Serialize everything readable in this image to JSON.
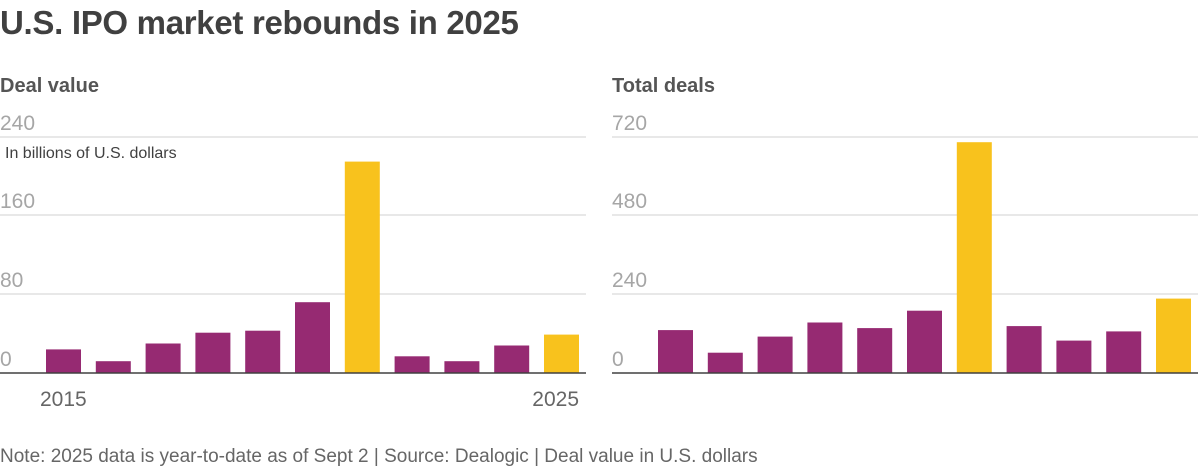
{
  "title": "U.S. IPO market rebounds in 2025",
  "note": "Note: 2025 data is year-to-date as of Sept 2 | Source: Dealogic | Deal value in U.S. dollars",
  "colors": {
    "default": "#962a72",
    "highlight": "#f8c21d"
  },
  "chart_data": [
    {
      "type": "bar",
      "title": "Deal value",
      "unit_label": "In billions of U.S. dollars",
      "categories": [
        "2015",
        "2016",
        "2017",
        "2018",
        "2019",
        "2020",
        "2021",
        "2022",
        "2023",
        "2024",
        "2025"
      ],
      "values": [
        24,
        12,
        30,
        41,
        43,
        72,
        215,
        17,
        12,
        28,
        39
      ],
      "highlight": [
        false,
        false,
        false,
        false,
        false,
        false,
        true,
        false,
        false,
        false,
        true
      ],
      "ylim": [
        0,
        240
      ],
      "yticks": [
        "240",
        "160",
        "80",
        "0"
      ],
      "ytick_values": [
        240,
        160,
        80,
        0
      ],
      "xtick_labels": [
        "2015",
        "2025"
      ],
      "xlabel": "",
      "ylabel": ""
    },
    {
      "type": "bar",
      "title": "Total deals",
      "categories": [
        "2015",
        "2016",
        "2017",
        "2018",
        "2019",
        "2020",
        "2021",
        "2022",
        "2023",
        "2024",
        "2025"
      ],
      "values": [
        131,
        62,
        111,
        154,
        137,
        190,
        704,
        143,
        99,
        127,
        227
      ],
      "highlight": [
        false,
        false,
        false,
        false,
        false,
        false,
        true,
        false,
        false,
        false,
        true
      ],
      "ylim": [
        0,
        720
      ],
      "yticks": [
        "720",
        "480",
        "240",
        "0"
      ],
      "ytick_values": [
        720,
        480,
        240,
        0
      ],
      "xlabel": "",
      "ylabel": ""
    }
  ]
}
